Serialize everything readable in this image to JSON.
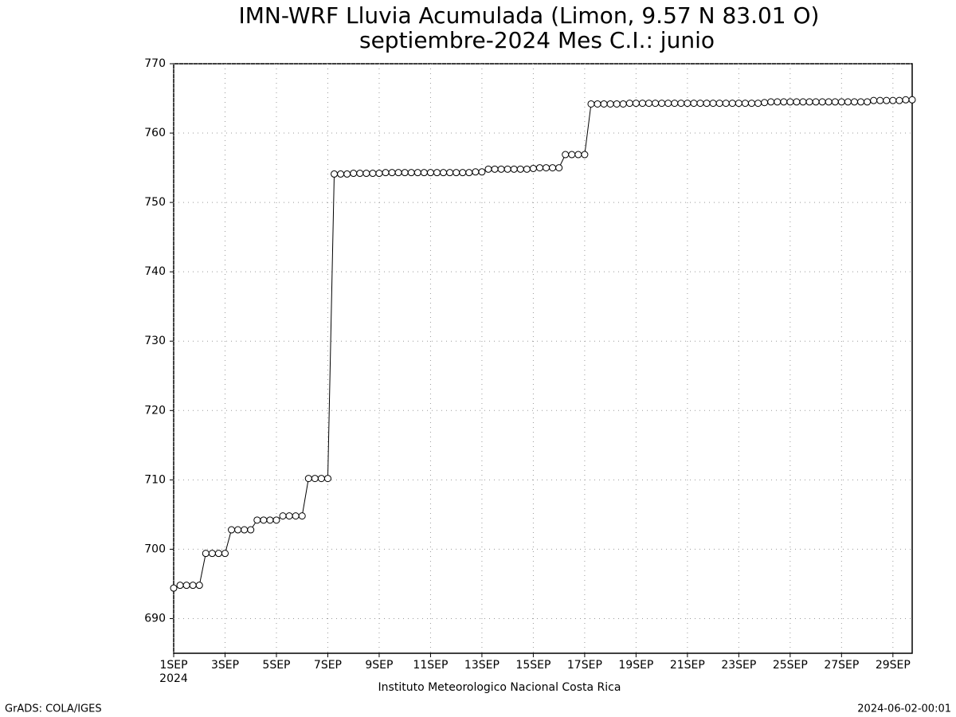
{
  "chart_data": {
    "type": "line",
    "title": "IMN-WRF  Lluvia Acumulada  (Limon, 9.57  N 83.01  O)",
    "subtitle": "septiembre-2024 Mes C.I.: junio",
    "x_sublabel": "2024",
    "footer": "Instituto Meteorologico Nacional Costa Rica",
    "credit": "GrADS: COLA/IGES",
    "timestamp": "2024-06-02-00:01",
    "grid": true,
    "xlim": [
      1,
      29.75
    ],
    "ylim": [
      685,
      770
    ],
    "xticks": [
      {
        "value": 1,
        "label": "1SEP"
      },
      {
        "value": 3,
        "label": "3SEP"
      },
      {
        "value": 5,
        "label": "5SEP"
      },
      {
        "value": 7,
        "label": "7SEP"
      },
      {
        "value": 9,
        "label": "9SEP"
      },
      {
        "value": 11,
        "label": "11SEP"
      },
      {
        "value": 13,
        "label": "13SEP"
      },
      {
        "value": 15,
        "label": "15SEP"
      },
      {
        "value": 17,
        "label": "17SEP"
      },
      {
        "value": 19,
        "label": "19SEP"
      },
      {
        "value": 21,
        "label": "21SEP"
      },
      {
        "value": 23,
        "label": "23SEP"
      },
      {
        "value": 25,
        "label": "25SEP"
      },
      {
        "value": 27,
        "label": "27SEP"
      },
      {
        "value": 29,
        "label": "29SEP"
      }
    ],
    "yticks": [
      690,
      700,
      710,
      720,
      730,
      740,
      750,
      760,
      770
    ],
    "x": [
      1,
      1.25,
      1.5,
      1.75,
      2,
      2.25,
      2.5,
      2.75,
      3,
      3.25,
      3.5,
      3.75,
      4,
      4.25,
      4.5,
      4.75,
      5,
      5.25,
      5.5,
      5.75,
      6,
      6.25,
      6.5,
      6.75,
      7,
      7.25,
      7.5,
      7.75,
      8,
      8.25,
      8.5,
      8.75,
      9,
      9.25,
      9.5,
      9.75,
      10,
      10.25,
      10.5,
      10.75,
      11,
      11.25,
      11.5,
      11.75,
      12,
      12.25,
      12.5,
      12.75,
      13,
      13.25,
      13.5,
      13.75,
      14,
      14.25,
      14.5,
      14.75,
      15,
      15.25,
      15.5,
      15.75,
      16,
      16.25,
      16.5,
      16.75,
      17,
      17.25,
      17.5,
      17.75,
      18,
      18.25,
      18.5,
      18.75,
      19,
      19.25,
      19.5,
      19.75,
      20,
      20.25,
      20.5,
      20.75,
      21,
      21.25,
      21.5,
      21.75,
      22,
      22.25,
      22.5,
      22.75,
      23,
      23.25,
      23.5,
      23.75,
      24,
      24.25,
      24.5,
      24.75,
      25,
      25.25,
      25.5,
      25.75,
      26,
      26.25,
      26.5,
      26.75,
      27,
      27.25,
      27.5,
      27.75,
      28,
      28.25,
      28.5,
      28.75,
      29,
      29.25,
      29.5,
      29.75
    ],
    "series": [
      {
        "color": "#000000",
        "values": [
          694.4,
          694.8,
          694.8,
          694.8,
          694.8,
          699.4,
          699.4,
          699.4,
          699.4,
          702.8,
          702.8,
          702.8,
          702.8,
          704.2,
          704.2,
          704.2,
          704.2,
          704.8,
          704.8,
          704.8,
          704.8,
          710.2,
          710.2,
          710.2,
          710.2,
          754.1,
          754.1,
          754.1,
          754.2,
          754.2,
          754.2,
          754.2,
          754.2,
          754.3,
          754.3,
          754.3,
          754.3,
          754.3,
          754.3,
          754.3,
          754.3,
          754.3,
          754.3,
          754.3,
          754.3,
          754.3,
          754.3,
          754.4,
          754.4,
          754.8,
          754.8,
          754.8,
          754.8,
          754.8,
          754.8,
          754.8,
          754.9,
          755.0,
          755.0,
          755.0,
          755.0,
          756.9,
          756.9,
          756.9,
          756.9,
          764.2,
          764.2,
          764.2,
          764.2,
          764.2,
          764.2,
          764.3,
          764.3,
          764.3,
          764.3,
          764.3,
          764.3,
          764.3,
          764.3,
          764.3,
          764.3,
          764.3,
          764.3,
          764.3,
          764.3,
          764.3,
          764.3,
          764.3,
          764.3,
          764.3,
          764.3,
          764.3,
          764.4,
          764.5,
          764.5,
          764.5,
          764.5,
          764.5,
          764.5,
          764.5,
          764.5,
          764.5,
          764.5,
          764.5,
          764.5,
          764.5,
          764.5,
          764.5,
          764.5,
          764.7,
          764.7,
          764.7,
          764.7,
          764.7,
          764.8,
          764.8
        ]
      }
    ]
  }
}
